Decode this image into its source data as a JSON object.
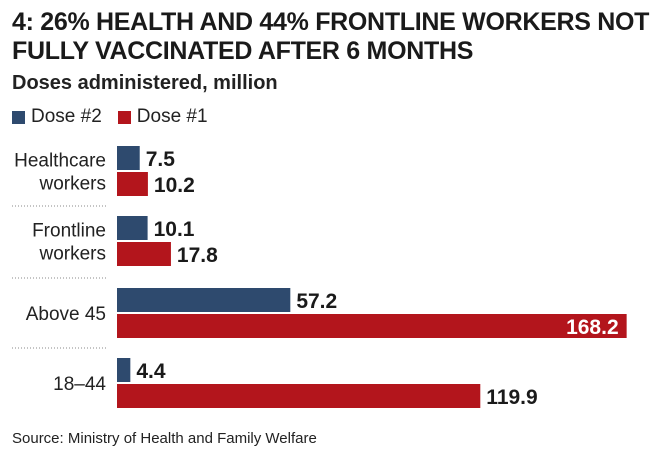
{
  "title": "4: 26% HEALTH AND 44% FRONTLINE WORKERS NOT FULLY VACCINATED AFTER 6 MONTHS",
  "subtitle": "Doses administered, million",
  "source": "Source: Ministry of Health and Family Welfare",
  "colors": {
    "dose2": "#2e4a6e",
    "dose1": "#b3151c",
    "divider": "#8a8a8a"
  },
  "chart_data": {
    "type": "bar",
    "orientation": "horizontal",
    "title": "4: 26% HEALTH AND 44% FRONTLINE WORKERS NOT FULLY VACCINATED AFTER 6 MONTHS",
    "subtitle": "Doses administered, million",
    "categories": [
      "Healthcare workers",
      "Frontline workers",
      "Above 45",
      "18-44"
    ],
    "category_lines": [
      [
        "Healthcare",
        "workers"
      ],
      [
        "Frontline",
        "workers"
      ],
      [
        "Above 45"
      ],
      [
        "18–44"
      ]
    ],
    "series": [
      {
        "name": "Dose #2",
        "values": [
          7.5,
          10.1,
          57.2,
          4.4
        ]
      },
      {
        "name": "Dose #1",
        "values": [
          10.2,
          17.8,
          168.2,
          119.9
        ]
      }
    ],
    "value_labels": [
      [
        "7.5",
        "10.2"
      ],
      [
        "10.1",
        "17.8"
      ],
      [
        "57.2",
        "168.2"
      ],
      [
        "4.4",
        "119.9"
      ]
    ],
    "legend": "top-left",
    "grid": false
  }
}
